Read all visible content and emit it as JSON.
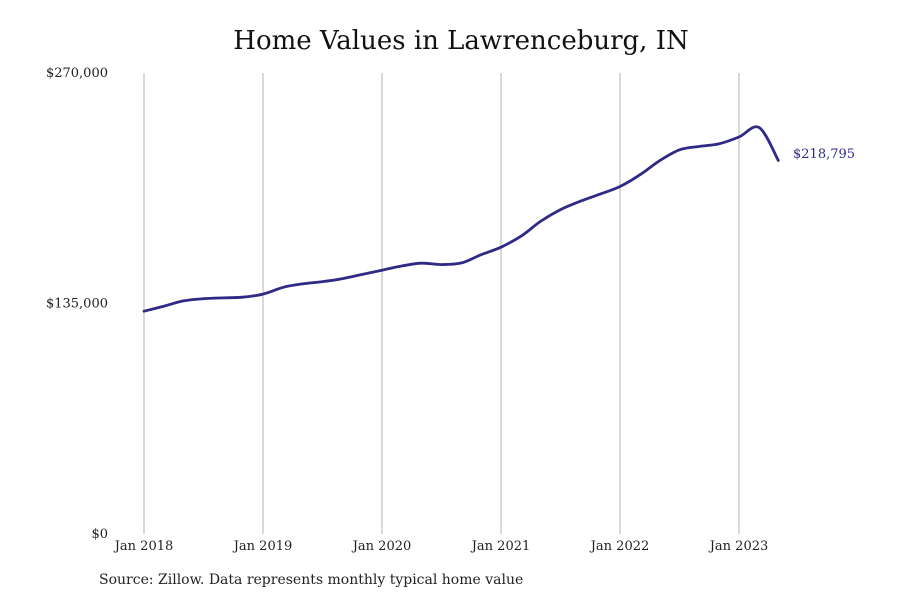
{
  "chart_data": {
    "type": "line",
    "title": "Home Values in Lawrenceburg, IN",
    "xlabel": "",
    "ylabel": "",
    "ylim": [
      0,
      270000
    ],
    "y_ticks": [
      {
        "value": 0,
        "label": "$0"
      },
      {
        "value": 135000,
        "label": "$135,000"
      },
      {
        "value": 270000,
        "label": "$270,000"
      }
    ],
    "x_ticks": [
      {
        "value": 2018.0,
        "label": "Jan 2018"
      },
      {
        "value": 2019.0,
        "label": "Jan 2019"
      },
      {
        "value": 2020.0,
        "label": "Jan 2020"
      },
      {
        "value": 2021.0,
        "label": "Jan 2021"
      },
      {
        "value": 2022.0,
        "label": "Jan 2022"
      },
      {
        "value": 2023.0,
        "label": "Jan 2023"
      }
    ],
    "xlim": [
      2018.0,
      2023.33
    ],
    "grid": "vertical",
    "line_color": "#2e2a86",
    "end_label": "$218,795",
    "series": [
      {
        "x": [
          2018.0,
          2018.17,
          2018.33,
          2018.5,
          2018.67,
          2018.83,
          2019.0,
          2019.17,
          2019.33,
          2019.5,
          2019.67,
          2019.83,
          2020.0,
          2020.17,
          2020.33,
          2020.5,
          2020.67,
          2020.83,
          2021.0,
          2021.17,
          2021.33,
          2021.5,
          2021.67,
          2021.83,
          2022.0,
          2022.17,
          2022.33,
          2022.5,
          2022.67,
          2022.83,
          2023.0,
          2023.17,
          2023.33
        ],
        "values": [
          130500,
          133500,
          136500,
          137800,
          138300,
          138700,
          140500,
          144500,
          146500,
          147800,
          149600,
          152000,
          154500,
          157000,
          158600,
          157800,
          158800,
          163500,
          168000,
          174500,
          183000,
          190000,
          195000,
          199000,
          203500,
          210500,
          218500,
          225000,
          227000,
          228500,
          232500,
          238000,
          218795
        ]
      }
    ]
  },
  "footer": {
    "source": "Source: Zillow. Data represents monthly typical home value"
  }
}
